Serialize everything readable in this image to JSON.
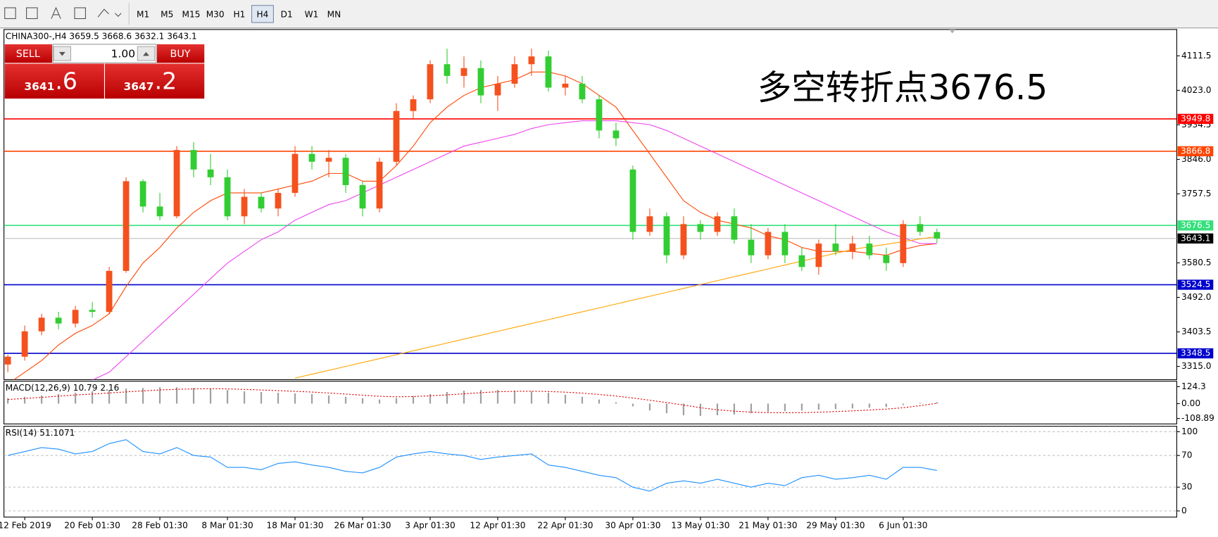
{
  "toolbar": {
    "timeframes": [
      "M1",
      "M5",
      "M15",
      "M30",
      "H1",
      "H4",
      "D1",
      "W1",
      "MN"
    ],
    "active": "H4"
  },
  "trade_panel": {
    "sell": "SELL",
    "lot": "1.00",
    "buy": "BUY",
    "bid_main": "3641",
    "bid_frac": ".6",
    "ask_main": "3647",
    "ask_frac": ".2"
  },
  "chart_data": [
    {
      "type": "candlestick",
      "header": "CHINA300-,H4  3659.5 3668.6 3632.1 3643.1",
      "annotation": "多空转折点3676.5",
      "categories": [
        null,
        "12 Feb 2019",
        null,
        null,
        null,
        "20 Feb 01:30",
        null,
        null,
        null,
        "28 Feb 01:30",
        null,
        null,
        null,
        "8 Mar 01:30",
        null,
        null,
        null,
        "18 Mar 01:30",
        null,
        null,
        null,
        "26 Mar 01:30",
        null,
        null,
        null,
        "3 Apr 01:30",
        null,
        null,
        null,
        "12 Apr 01:30",
        null,
        null,
        null,
        "22 Apr 01:30",
        null,
        null,
        null,
        "30 Apr 01:30",
        null,
        null,
        null,
        "13 May 01:30",
        null,
        null,
        null,
        "21 May 01:30",
        null,
        null,
        null,
        "29 May 01:30",
        null,
        null,
        null,
        "6 Jun 01:30",
        null,
        null
      ],
      "ohlc": [
        [
          3320,
          3345,
          3300,
          3340
        ],
        [
          3340,
          3420,
          3330,
          3405
        ],
        [
          3405,
          3450,
          3395,
          3440
        ],
        [
          3440,
          3455,
          3410,
          3425
        ],
        [
          3425,
          3470,
          3415,
          3460
        ],
        [
          3460,
          3480,
          3440,
          3455
        ],
        [
          3455,
          3570,
          3450,
          3560
        ],
        [
          3560,
          3800,
          3555,
          3790
        ],
        [
          3790,
          3795,
          3710,
          3725
        ],
        [
          3725,
          3760,
          3690,
          3700
        ],
        [
          3700,
          3880,
          3695,
          3870
        ],
        [
          3870,
          3890,
          3800,
          3820
        ],
        [
          3820,
          3860,
          3780,
          3800
        ],
        [
          3800,
          3820,
          3690,
          3700
        ],
        [
          3700,
          3770,
          3680,
          3750
        ],
        [
          3750,
          3760,
          3710,
          3720
        ],
        [
          3720,
          3770,
          3700,
          3760
        ],
        [
          3760,
          3880,
          3750,
          3860
        ],
        [
          3860,
          3880,
          3820,
          3840
        ],
        [
          3840,
          3870,
          3800,
          3850
        ],
        [
          3850,
          3860,
          3760,
          3780
        ],
        [
          3780,
          3790,
          3700,
          3720
        ],
        [
          3720,
          3850,
          3710,
          3840
        ],
        [
          3840,
          3990,
          3830,
          3970
        ],
        [
          3970,
          4010,
          3950,
          4000
        ],
        [
          4000,
          4100,
          3990,
          4090
        ],
        [
          4090,
          4130,
          4040,
          4060
        ],
        [
          4060,
          4110,
          4030,
          4080
        ],
        [
          4080,
          4100,
          3990,
          4010
        ],
        [
          4010,
          4060,
          3970,
          4040
        ],
        [
          4040,
          4110,
          4030,
          4090
        ],
        [
          4090,
          4130,
          4060,
          4110
        ],
        [
          4110,
          4125,
          4020,
          4030
        ],
        [
          4030,
          4060,
          4010,
          4040
        ],
        [
          4040,
          4060,
          3990,
          4000
        ],
        [
          4000,
          4010,
          3900,
          3920
        ],
        [
          3920,
          3940,
          3880,
          3900
        ],
        [
          3820,
          3830,
          3640,
          3660
        ],
        [
          3660,
          3720,
          3650,
          3700
        ],
        [
          3700,
          3710,
          3580,
          3600
        ],
        [
          3600,
          3700,
          3590,
          3680
        ],
        [
          3680,
          3690,
          3640,
          3660
        ],
        [
          3660,
          3710,
          3650,
          3700
        ],
        [
          3700,
          3720,
          3630,
          3640
        ],
        [
          3640,
          3680,
          3580,
          3600
        ],
        [
          3600,
          3670,
          3590,
          3660
        ],
        [
          3660,
          3680,
          3580,
          3600
        ],
        [
          3600,
          3620,
          3560,
          3570
        ],
        [
          3570,
          3640,
          3550,
          3630
        ],
        [
          3630,
          3680,
          3600,
          3610
        ],
        [
          3610,
          3650,
          3590,
          3630
        ],
        [
          3630,
          3650,
          3590,
          3600
        ],
        [
          3600,
          3620,
          3560,
          3580
        ],
        [
          3580,
          3690,
          3570,
          3680
        ],
        [
          3680,
          3700,
          3650,
          3660
        ],
        [
          3659.5,
          3668.6,
          3632.1,
          3643.1
        ]
      ],
      "up_color": "#f4511e",
      "down_color": "#32cd32",
      "ylim": [
        3281,
        4179
      ],
      "yticks": [
        4111.5,
        {
          "value": 4023,
          "label": "4023.0"
        },
        3934.5,
        {
          "value": 3846,
          "label": "3846.0"
        },
        3757.5,
        3580.5,
        {
          "value": 3492,
          "label": "3492.0"
        },
        3403.5,
        {
          "value": 3315,
          "label": "3315.0"
        }
      ],
      "levels": [
        {
          "value": 3949.8,
          "color": "#ff0000",
          "label_color": "#ff0000"
        },
        {
          "value": 3866.8,
          "color": "#ff4500",
          "label_color": "#ff4500"
        },
        {
          "value": 3676.5,
          "color": "#33e07a",
          "label_color": "#33e07a"
        },
        {
          "value": 3643.1,
          "color": "#c0c0c0",
          "label_color": "#000000"
        },
        {
          "value": 3524.5,
          "color": "#0000cd",
          "label_color": "#0000cd"
        },
        {
          "value": 3348.5,
          "color": "#0000cd",
          "label_color": "#0000cd"
        }
      ],
      "moving_averages": [
        {
          "color": "#ff4500",
          "values": [
            3270,
            3300,
            3330,
            3370,
            3400,
            3420,
            3450,
            3520,
            3580,
            3620,
            3670,
            3710,
            3740,
            3760,
            3760,
            3760,
            3770,
            3780,
            3790,
            3810,
            3810,
            3790,
            3790,
            3830,
            3880,
            3940,
            3980,
            4010,
            4030,
            4040,
            4050,
            4070,
            4070,
            4060,
            4040,
            4010,
            3980,
            3920,
            3860,
            3800,
            3740,
            3710,
            3690,
            3680,
            3670,
            3650,
            3640,
            3620,
            3610,
            3610,
            3610,
            3605,
            3600,
            3615,
            3625,
            3630
          ]
        },
        {
          "color": "#ee44ee",
          "values": [
            null,
            null,
            null,
            null,
            null,
            3280,
            3300,
            3340,
            3380,
            3420,
            3460,
            3500,
            3540,
            3580,
            3610,
            3640,
            3660,
            3690,
            3710,
            3730,
            3740,
            3760,
            3780,
            3800,
            3820,
            3840,
            3860,
            3880,
            3890,
            3900,
            3910,
            3925,
            3935,
            3940,
            3945,
            3945,
            3945,
            3940,
            3935,
            3920,
            3900,
            3880,
            3860,
            3840,
            3820,
            3800,
            3780,
            3760,
            3740,
            3720,
            3700,
            3680,
            3660,
            3645,
            3630,
            3630
          ]
        },
        {
          "color": "#ffa500",
          "values": [
            null,
            null,
            null,
            null,
            null,
            null,
            null,
            null,
            null,
            null,
            null,
            null,
            null,
            null,
            null,
            null,
            null,
            3285,
            3295,
            3305,
            3315,
            3325,
            3335,
            3345,
            3355,
            3365,
            3375,
            3385,
            3395,
            3405,
            3415,
            3425,
            3435,
            3445,
            3455,
            3465,
            3475,
            3485,
            3495,
            3505,
            3515,
            3525,
            3535,
            3545,
            3555,
            3565,
            3575,
            3585,
            3595,
            3605,
            3615,
            3622,
            3628,
            3635,
            3642,
            3648
          ]
        }
      ]
    },
    {
      "type": "macd",
      "title": "MACD(12,26,9) 10.79 2.16",
      "color": "#a0a0a0",
      "signal_color": "#e00000",
      "values": [
        40,
        50,
        60,
        70,
        80,
        90,
        100,
        110,
        115,
        120,
        120,
        115,
        110,
        100,
        90,
        85,
        80,
        75,
        70,
        60,
        50,
        40,
        30,
        40,
        55,
        70,
        85,
        95,
        100,
        100,
        95,
        90,
        80,
        65,
        50,
        30,
        10,
        -20,
        -50,
        -70,
        -85,
        -90,
        -85,
        -80,
        -70,
        -60,
        -55,
        -50,
        -45,
        -40,
        -35,
        -30,
        -25,
        -10,
        5,
        10.79
      ],
      "signal": [
        30,
        38,
        46,
        55,
        63,
        70,
        78,
        86,
        93,
        100,
        105,
        108,
        110,
        108,
        104,
        100,
        95,
        90,
        85,
        78,
        70,
        62,
        54,
        50,
        52,
        57,
        64,
        72,
        80,
        87,
        90,
        91,
        89,
        84,
        77,
        67,
        56,
        41,
        25,
        8,
        -10,
        -30,
        -45,
        -55,
        -62,
        -66,
        -67,
        -66,
        -63,
        -58,
        -53,
        -47,
        -40,
        -30,
        -15,
        2.16
      ],
      "ylim": [
        -148.7,
        164.1
      ],
      "yticks": [
        124.3,
        {
          "value": 0,
          "label": "0.00"
        },
        -108.89
      ]
    },
    {
      "type": "line",
      "title": "RSI(14) 51.1071",
      "color": "#1e90ff",
      "values": [
        70,
        75,
        80,
        78,
        72,
        75,
        85,
        90,
        75,
        72,
        80,
        70,
        68,
        55,
        55,
        52,
        60,
        62,
        58,
        55,
        50,
        48,
        55,
        68,
        72,
        75,
        72,
        70,
        65,
        68,
        70,
        72,
        58,
        55,
        50,
        45,
        42,
        30,
        25,
        35,
        38,
        35,
        40,
        35,
        30,
        35,
        32,
        42,
        45,
        40,
        42,
        45,
        40,
        55,
        55,
        51.1071
      ],
      "ylim": [
        -7.8,
        106.9
      ],
      "yticks": [
        100,
        70,
        30,
        0
      ],
      "grid": true
    }
  ]
}
